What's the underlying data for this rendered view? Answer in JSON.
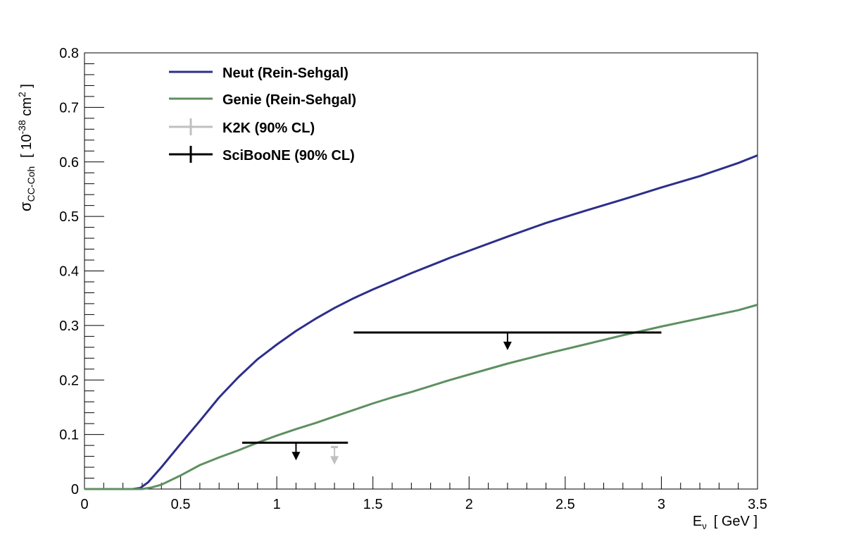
{
  "chart_data": {
    "type": "line",
    "xlim": [
      0,
      3.5
    ],
    "ylim": [
      0,
      0.8
    ],
    "x_ticks": [
      "0",
      "0.5",
      "1",
      "1.5",
      "2",
      "2.5",
      "3",
      "3.5"
    ],
    "y_ticks": [
      "0",
      "0.1",
      "0.2",
      "0.3",
      "0.4",
      "0.5",
      "0.6",
      "0.7",
      "0.8"
    ],
    "xlabel": {
      "main": "E",
      "sub": "ν",
      "unit": "[ GeV ]"
    },
    "ylabel": {
      "main": "σ",
      "sub": "CC-Coh",
      "unit_open": "[ 10",
      "sup1": "-38",
      "unit_mid": " cm",
      "sup2": "2",
      "unit_close": " ]"
    },
    "legend_position": "top-left",
    "grid": false,
    "series": [
      {
        "name": "Neut (Rein-Sehgal)",
        "color": "#2e2e8b",
        "x": [
          0,
          0.25,
          0.29,
          0.33,
          0.4,
          0.5,
          0.6,
          0.7,
          0.8,
          0.9,
          1.0,
          1.1,
          1.2,
          1.3,
          1.4,
          1.5,
          1.6,
          1.7,
          1.8,
          1.9,
          2.0,
          2.2,
          2.4,
          2.6,
          2.8,
          3.0,
          3.2,
          3.4,
          3.5
        ],
        "y": [
          0,
          0,
          0.002,
          0.012,
          0.04,
          0.083,
          0.125,
          0.168,
          0.205,
          0.238,
          0.265,
          0.29,
          0.312,
          0.332,
          0.35,
          0.366,
          0.381,
          0.396,
          0.41,
          0.424,
          0.437,
          0.463,
          0.488,
          0.51,
          0.531,
          0.553,
          0.574,
          0.598,
          0.612
        ]
      },
      {
        "name": "Genie (Rein-Sehgal)",
        "color": "#5e9060",
        "x": [
          0,
          0.3,
          0.35,
          0.4,
          0.5,
          0.6,
          0.7,
          0.8,
          0.9,
          1.0,
          1.1,
          1.2,
          1.3,
          1.4,
          1.5,
          1.6,
          1.7,
          1.8,
          1.9,
          2.0,
          2.2,
          2.4,
          2.6,
          2.8,
          3.0,
          3.2,
          3.4,
          3.5
        ],
        "y": [
          0,
          0,
          0.003,
          0.008,
          0.025,
          0.044,
          0.058,
          0.071,
          0.085,
          0.098,
          0.11,
          0.121,
          0.133,
          0.145,
          0.157,
          0.168,
          0.178,
          0.189,
          0.2,
          0.21,
          0.23,
          0.248,
          0.265,
          0.282,
          0.298,
          0.313,
          0.328,
          0.338
        ]
      }
    ],
    "limits": [
      {
        "name": "K2K (90% CL)",
        "color": "#c0c0c0",
        "x": 1.3,
        "y": 0.077,
        "x_range": null
      },
      {
        "name": "SciBooNE (90% CL)",
        "color": "#000000",
        "x": 1.1,
        "y": 0.085,
        "x_range": [
          0.82,
          1.37
        ]
      },
      {
        "name": "SciBooNE (90% CL)",
        "color": "#000000",
        "x": 2.2,
        "y": 0.287,
        "x_range": [
          1.4,
          3.0
        ]
      }
    ]
  }
}
